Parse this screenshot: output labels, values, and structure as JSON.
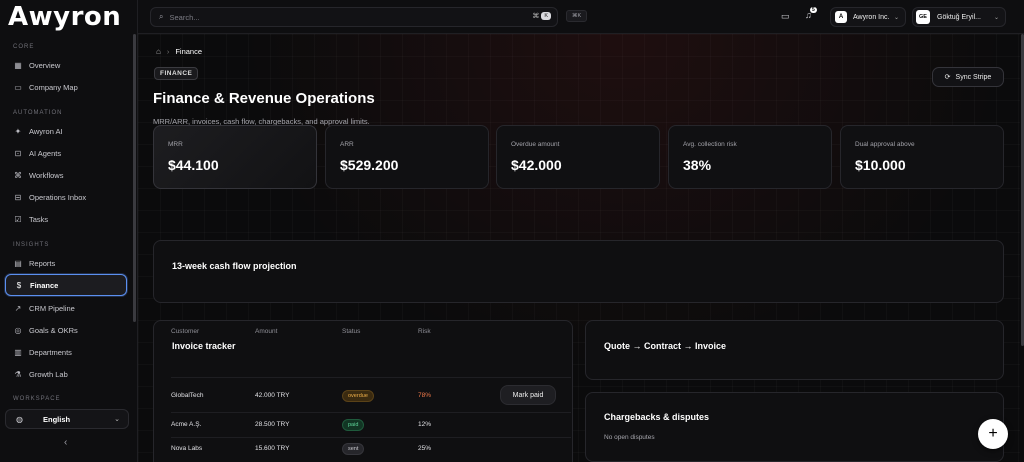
{
  "app": {
    "logo": "Awyron"
  },
  "sidebar": {
    "sections": [
      {
        "label": "CORE"
      },
      {
        "label": "AUTOMATION"
      },
      {
        "label": "INSIGHTS"
      },
      {
        "label": "WORKSPACE"
      }
    ],
    "items": [
      {
        "label": "Overview",
        "icon": "grid-icon"
      },
      {
        "label": "Company Map",
        "icon": "map-icon"
      },
      {
        "label": "Awyron AI",
        "icon": "sparkle-icon"
      },
      {
        "label": "AI Agents",
        "icon": "robot-icon"
      },
      {
        "label": "Workflows",
        "icon": "workflow-icon"
      },
      {
        "label": "Operations Inbox",
        "icon": "inbox-icon"
      },
      {
        "label": "Tasks",
        "icon": "checkbox-icon"
      },
      {
        "label": "Reports",
        "icon": "document-icon"
      },
      {
        "label": "Finance",
        "icon": "dollar-icon",
        "active": true
      },
      {
        "label": "CRM Pipeline",
        "icon": "trend-icon"
      },
      {
        "label": "Goals & OKRs",
        "icon": "target-icon"
      },
      {
        "label": "Departments",
        "icon": "building-icon"
      },
      {
        "label": "Growth Lab",
        "icon": "flask-icon"
      }
    ],
    "language": "English"
  },
  "topbar": {
    "search_placeholder": "Search...",
    "search_kbd": "⌘",
    "search_kbd_key": "K",
    "shortcut_chip": "⌘K",
    "notification_count": "5",
    "org": {
      "initial": "A",
      "name": "Awyron Inc."
    },
    "user": {
      "initials": "GE",
      "name": "Göktuğ Eryil..."
    }
  },
  "page": {
    "breadcrumb": "Finance",
    "pill": "FINANCE",
    "title": "Finance & Revenue Operations",
    "subtitle": "MRR/ARR, invoices, cash flow, chargebacks, and approval limits.",
    "sync_button": "Sync Stripe"
  },
  "kpis": [
    {
      "label": "MRR",
      "value": "$44.100"
    },
    {
      "label": "ARR",
      "value": "$529.200"
    },
    {
      "label": "Overdue amount",
      "value": "$42.000"
    },
    {
      "label": "Avg. collection risk",
      "value": "38%"
    },
    {
      "label": "Dual approval above",
      "value": "$10.000"
    }
  ],
  "cashflow": {
    "title": "13-week cash flow projection"
  },
  "invoices": {
    "title": "Invoice tracker",
    "columns": [
      "Customer",
      "Amount",
      "Status",
      "Risk"
    ],
    "rows": [
      {
        "customer": "GlobalTech",
        "amount": "42.000 TRY",
        "status": "overdue",
        "risk": "78%"
      },
      {
        "customer": "Acme A.Ş.",
        "amount": "28.500 TRY",
        "status": "paid",
        "risk": "12%"
      },
      {
        "customer": "Nova Labs",
        "amount": "15.600 TRY",
        "status": "sent",
        "risk": "25%"
      }
    ],
    "mark_paid": "Mark paid"
  },
  "quote": {
    "title": "Quote → Contract → Invoice"
  },
  "chargebacks": {
    "title": "Chargebacks & disputes",
    "empty": "No open disputes"
  },
  "fab": "+"
}
